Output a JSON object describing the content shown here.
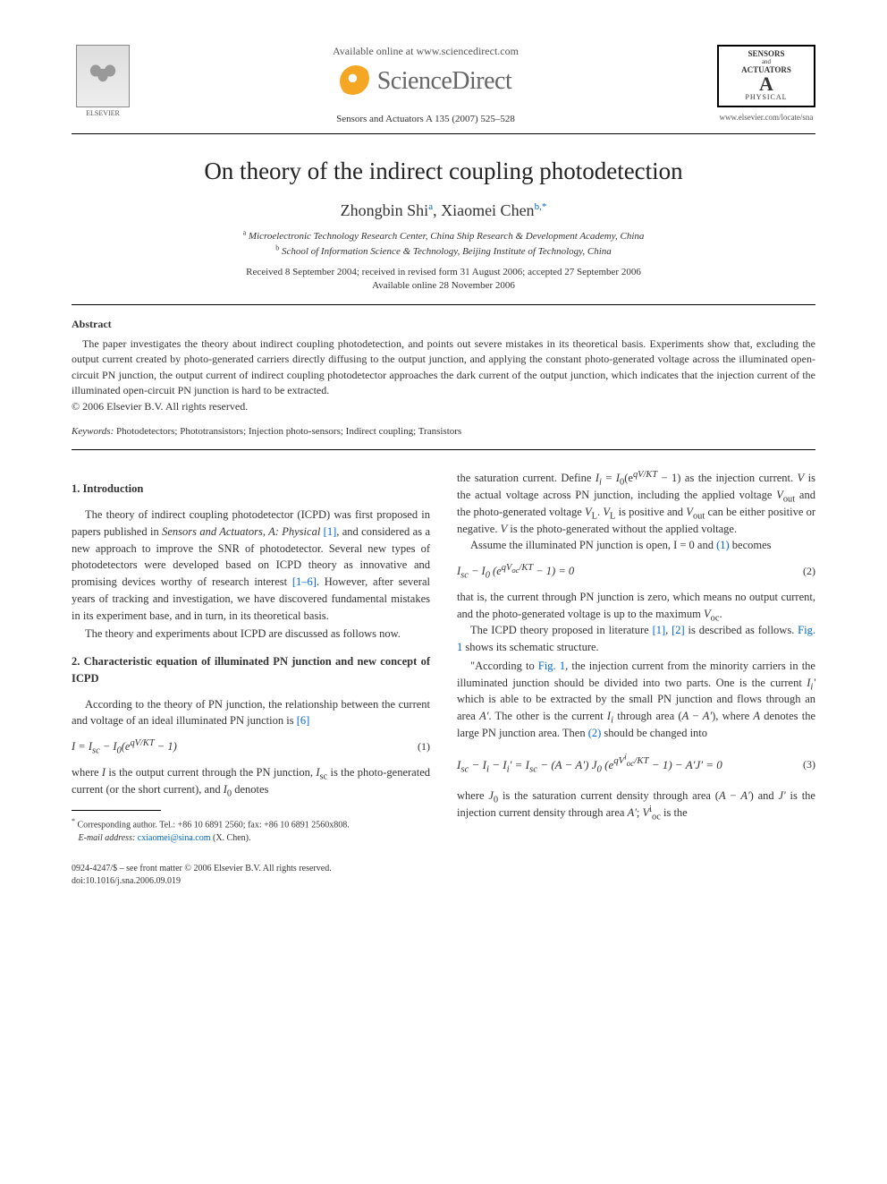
{
  "header": {
    "available_online": "Available online at www.sciencedirect.com",
    "sciencedirect": "ScienceDirect",
    "citation": "Sensors and Actuators A 135 (2007) 525–528",
    "elsevier_label": "ELSEVIER",
    "journal_box": {
      "line1": "SENSORS",
      "and": "and",
      "line2": "ACTUATORS",
      "big": "A",
      "phys": "PHYSICAL"
    },
    "journal_url": "www.elsevier.com/locate/sna"
  },
  "title": "On theory of the indirect coupling photodetection",
  "authors": {
    "a1_name": "Zhongbin Shi",
    "a1_sup": "a",
    "a2_name": "Xiaomei Chen",
    "a2_sup": "b,",
    "star": "*"
  },
  "affiliations": {
    "a": "Microelectronic Technology Research Center, China Ship Research & Development Academy, China",
    "b": "School of Information Science & Technology, Beijing Institute of Technology, China"
  },
  "dates": {
    "received": "Received 8 September 2004; received in revised form 31 August 2006; accepted 27 September 2006",
    "online": "Available online 28 November 2006"
  },
  "abstract": {
    "heading": "Abstract",
    "text": "The paper investigates the theory about indirect coupling photodetection, and points out severe mistakes in its theoretical basis. Experiments show that, excluding the output current created by photo-generated carriers directly diffusing to the output junction, and applying the constant photo-generated voltage across the illuminated open-circuit PN junction, the output current of indirect coupling photodetector approaches the dark current of the output junction, which indicates that the injection current of the illuminated open-circuit PN junction is hard to be extracted.",
    "copyright": "© 2006 Elsevier B.V. All rights reserved."
  },
  "keywords": {
    "label": "Keywords:",
    "text": "Photodetectors; Phototransistors; Injection photo-sensors; Indirect coupling; Transistors"
  },
  "left": {
    "sec1_head": "1. Introduction",
    "sec1_p1a": "The theory of indirect coupling photodetector (ICPD) was first proposed in papers published in ",
    "sec1_p1_journal": "Sensors and Actuators, A: Physical",
    "sec1_p1_ref1": " [1]",
    "sec1_p1b": ", and considered as a new approach to improve the SNR of photodetector. Several new types of photodetectors were developed based on ICPD theory as innovative and promising devices worthy of research interest ",
    "sec1_p1_ref2": "[1–6]",
    "sec1_p1c": ". However, after several years of tracking and investigation, we have discovered fundamental mistakes in its experiment base, and in turn, in its theoretical basis.",
    "sec1_p2": "The theory and experiments about ICPD are discussed as follows now.",
    "sec2_head": "2. Characteristic equation of illuminated PN junction and new concept of ICPD",
    "sec2_p1a": "According to the theory of PN junction, the relationship between the current and voltage of an ideal illuminated PN junction is ",
    "sec2_p1_ref": "[6]",
    "eq1": "I = I_sc − I₀(e^{qV/KT} − 1)",
    "eq1_num": "(1)",
    "sec2_p2": "where I is the output current through the PN junction, I_sc is the photo-generated current (or the short current), and I₀ denotes",
    "footnote_star": "*",
    "footnote_corr": " Corresponding author. Tel.: +86 10 6891 2560; fax: +86 10 6891 2560x808.",
    "footnote_email_label": "E-mail address:",
    "footnote_email": " cxiaomei@sina.com",
    "footnote_email_tail": " (X. Chen).",
    "bottom_issn": "0924-4247/$ – see front matter © 2006 Elsevier B.V. All rights reserved.",
    "bottom_doi": "doi:10.1016/j.sna.2006.09.019"
  },
  "right": {
    "p1": "the saturation current. Define I_i = I₀(e^{qV/KT} − 1) as the injection current. V is the actual voltage across PN junction, including the applied voltage V_out and the photo-generated voltage V_L. V_L is positive and V_out can be either positive or negative. V is the photo-generated without the applied voltage.",
    "p2a": "Assume the illuminated PN junction is open, I = 0 and ",
    "p2_ref": "(1)",
    "p2b": " becomes",
    "eq2": "I_sc − I₀ (e^{qV_oc/KT} − 1) = 0",
    "eq2_num": "(2)",
    "p3": "that is, the current through PN junction is zero, which means no output current, and the photo-generated voltage is up to the maximum V_oc.",
    "p4a": "The ICPD theory proposed in literature ",
    "p4_ref1": "[1]",
    "p4_mid": ", ",
    "p4_ref2": "[2]",
    "p4b": " is described as follows. ",
    "p4_fig": "Fig. 1",
    "p4c": " shows its schematic structure.",
    "p5a": "\"According to ",
    "p5_fig": "Fig. 1",
    "p5b": ", the injection current from the minority carriers in the illuminated junction should be divided into two parts. One is the current I_i' which is able to be extracted by the small PN junction and flows through an area A'. The other is the current I_i through area (A − A'), where A denotes the large PN junction area. Then ",
    "p5_ref": "(2)",
    "p5c": " should be changed into",
    "eq3": "I_sc − I_i − I_i' = I_sc − (A − A') J₀ (e^{qV_oc^i/KT} − 1) − A'J' = 0",
    "eq3_num": "(3)",
    "p6": "where J₀ is the saturation current density through area (A − A') and J' is the injection current density through area A'; V_oc^i is the"
  },
  "colors": {
    "link": "#0066cc",
    "text": "#333333",
    "rule": "#000000"
  }
}
